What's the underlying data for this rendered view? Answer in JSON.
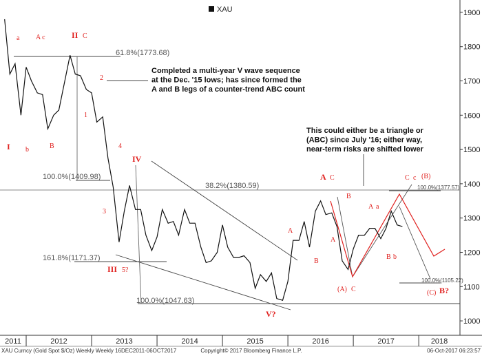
{
  "chart_data": {
    "type": "line",
    "legend": "XAU",
    "series": [
      {
        "name": "XAU",
        "color": "#111111",
        "x": [
          2011.67,
          2011.75,
          2011.83,
          2011.92,
          2012.0,
          2012.08,
          2012.17,
          2012.25,
          2012.33,
          2012.42,
          2012.5,
          2012.58,
          2012.67,
          2012.75,
          2012.83,
          2012.92,
          2013.0,
          2013.08,
          2013.17,
          2013.25,
          2013.33,
          2013.42,
          2013.5,
          2013.58,
          2013.67,
          2013.75,
          2013.83,
          2013.92,
          2014.0,
          2014.08,
          2014.17,
          2014.25,
          2014.33,
          2014.42,
          2014.5,
          2014.58,
          2014.67,
          2014.75,
          2014.83,
          2014.92,
          2015.0,
          2015.08,
          2015.17,
          2015.25,
          2015.33,
          2015.42,
          2015.5,
          2015.58,
          2015.67,
          2015.75,
          2015.83,
          2015.92,
          2016.0,
          2016.08,
          2016.17,
          2016.25,
          2016.33,
          2016.42,
          2016.5,
          2016.58,
          2016.67,
          2016.75,
          2016.83,
          2016.92,
          2017.0,
          2017.08,
          2017.17,
          2017.25,
          2017.33,
          2017.42,
          2017.5,
          2017.58,
          2017.67,
          2017.75
        ],
        "values": [
          1880,
          1720,
          1750,
          1600,
          1740,
          1700,
          1665,
          1660,
          1560,
          1600,
          1615,
          1690,
          1775,
          1720,
          1715,
          1675,
          1665,
          1580,
          1595,
          1475,
          1390,
          1230,
          1320,
          1395,
          1325,
          1325,
          1250,
          1205,
          1245,
          1325,
          1285,
          1290,
          1250,
          1325,
          1285,
          1285,
          1215,
          1170,
          1175,
          1200,
          1280,
          1215,
          1185,
          1185,
          1190,
          1170,
          1095,
          1135,
          1115,
          1140,
          1065,
          1060,
          1115,
          1235,
          1235,
          1290,
          1215,
          1320,
          1350,
          1310,
          1315,
          1275,
          1175,
          1150,
          1210,
          1250,
          1250,
          1270,
          1270,
          1240,
          1270,
          1320,
          1280,
          1275
        ]
      }
    ],
    "xlim": [
      2011.6,
      2018.63
    ],
    "xticks": [
      2011,
      2012,
      2013,
      2014,
      2015,
      2016,
      2017,
      2018
    ],
    "ylim": [
      958,
      1936
    ],
    "yticks": [
      1000,
      1100,
      1200,
      1300,
      1400,
      1500,
      1600,
      1700,
      1800,
      1900
    ],
    "fib_labels": [
      "61.8%(1773.68)",
      "100.0%(1409.98)",
      "38.2%(1380.59)",
      "161.8%(1171.37)",
      "100.0%(1047.63)",
      "100.0%(1377.57)",
      "100.0%(1105.22)"
    ],
    "wave_labels": [
      "a",
      "A c",
      "II",
      "C",
      "I",
      "b",
      "B",
      "2",
      "1",
      "4",
      "IV",
      "3",
      "III",
      "5?",
      "V?",
      "A",
      "B",
      "A",
      "C",
      "B",
      "A",
      "(A)",
      "C",
      "A",
      "a",
      "B",
      "b",
      "C",
      "c",
      "(B)",
      "(C)",
      "B?"
    ],
    "notes": [
      [
        "Completed a multi-year V wave sequence",
        "at the Dec. '15 lows; has since formed the",
        "A and B legs of a counter-trend ABC count"
      ],
      [
        "This could either be a triangle or",
        "(ABC) since July '16; either way,",
        "near-term risks are shifted lower"
      ]
    ],
    "footer": [
      "XAU Curncy (Gold Spot  $/Oz) Weekly  Weekly 16DEC2011-06OCT2017",
      "Copyright© 2017 Bloomberg Finance L.P.",
      "06-Oct-2017  06:23:57"
    ]
  }
}
